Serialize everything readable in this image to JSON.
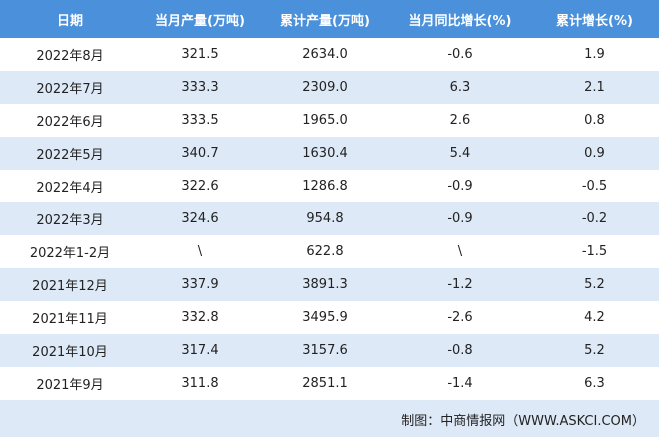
{
  "table": {
    "header": [
      "日期",
      "当月产量(万吨)",
      "累计产量(万吨)",
      "当月同比增长(%)",
      "累计增长(%)"
    ],
    "rows": [
      [
        "2022年8月",
        "321.5",
        "2634.0",
        "-0.6",
        "1.9"
      ],
      [
        "2022年7月",
        "333.3",
        "2309.0",
        "6.3",
        "2.1"
      ],
      [
        "2022年6月",
        "333.5",
        "1965.0",
        "2.6",
        "0.8"
      ],
      [
        "2022年5月",
        "340.7",
        "1630.4",
        "5.4",
        "0.9"
      ],
      [
        "2022年4月",
        "322.6",
        "1286.8",
        "-0.9",
        "-0.5"
      ],
      [
        "2022年3月",
        "324.6",
        "954.8",
        "-0.9",
        "-0.2"
      ],
      [
        "2022年1-2月",
        "\\",
        "622.8",
        "\\",
        "-1.5"
      ],
      [
        "2021年12月",
        "337.9",
        "3891.3",
        "-1.2",
        "5.2"
      ],
      [
        "2021年11月",
        "332.8",
        "3495.9",
        "-2.6",
        "4.2"
      ],
      [
        "2021年10月",
        "317.4",
        "3157.6",
        "-0.8",
        "5.2"
      ],
      [
        "2021年9月",
        "311.8",
        "2851.1",
        "-1.4",
        "6.3"
      ]
    ]
  },
  "footer": "制图：中商情报网（WWW.ASKCI.COM）"
}
